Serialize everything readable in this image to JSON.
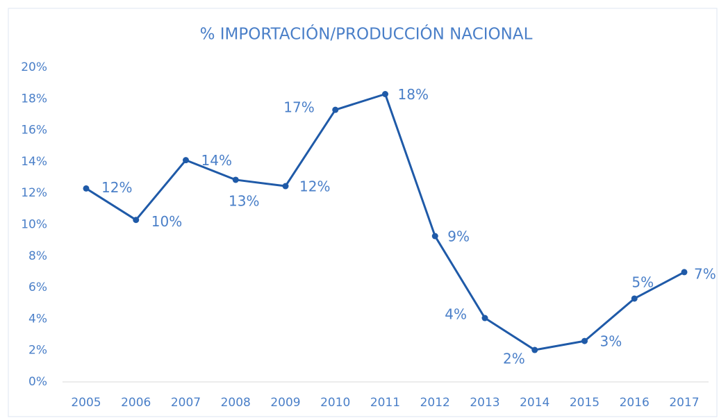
{
  "chart_data": {
    "type": "line",
    "title": "% IMPORTACIÓN/PRODUCCIÓN NACIONAL",
    "categories": [
      "2005",
      "2006",
      "2007",
      "2008",
      "2009",
      "2010",
      "2011",
      "2012",
      "2013",
      "2014",
      "2015",
      "2016",
      "2017"
    ],
    "series": [
      {
        "name": "% Importación/Producción Nacional",
        "color": "#1f5aa8",
        "values": [
          12.3,
          10.3,
          14.1,
          12.85,
          12.45,
          17.3,
          18.3,
          9.27,
          4.06,
          2.03,
          2.6,
          5.3,
          6.98
        ],
        "value_labels": [
          "12%",
          "10%",
          "14%",
          "13%",
          "12%",
          "17%",
          "18%",
          "9%",
          "4%",
          "2%",
          "3%",
          "5%",
          "7%"
        ]
      }
    ],
    "ylim": [
      0,
      20
    ],
    "yticks": [
      {
        "value": 0,
        "label": "0%"
      },
      {
        "value": 2,
        "label": "2%"
      },
      {
        "value": 4,
        "label": "4%"
      },
      {
        "value": 6,
        "label": "6%"
      },
      {
        "value": 8,
        "label": "8%"
      },
      {
        "value": 10,
        "label": "10%"
      },
      {
        "value": 12,
        "label": "12%"
      },
      {
        "value": 14,
        "label": "14%"
      },
      {
        "value": 16,
        "label": "16%"
      },
      {
        "value": 18,
        "label": "18%"
      },
      {
        "value": 20,
        "label": "20%"
      }
    ],
    "grid": false
  }
}
